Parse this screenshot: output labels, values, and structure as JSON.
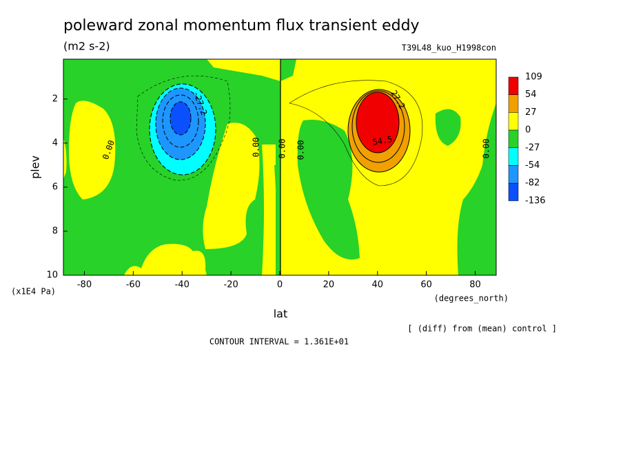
{
  "chart_data": {
    "type": "contour",
    "title": "poleward zonal momentum flux transient eddy",
    "subtitle": "(m2 s-2)",
    "run_label": "T39L48_kuo_H1998con",
    "x_label": "lat",
    "y_label": "plev",
    "x_unit": "(degrees_north)",
    "y_unit": "(x1E4 Pa)",
    "diff_note": "[ (diff) from (mean) control ]",
    "contour_interval": "CONTOUR INTERVAL = 1.361E+01",
    "xlim": [
      -88.6,
      88.6
    ],
    "xticks": [
      -80,
      -60,
      -40,
      -20,
      0,
      20,
      40,
      60,
      80
    ],
    "ylim": [
      10,
      0.19
    ],
    "yticks": [
      2,
      4,
      6,
      8,
      10
    ],
    "colorbar": {
      "levels": [
        109,
        54,
        27,
        0,
        -27,
        -54,
        -82,
        -136
      ],
      "colors": [
        "#f00000",
        "#f0a000",
        "#ffff00",
        "#28d228",
        "#00ffff",
        "#1e96ff",
        "#0a50ff"
      ]
    },
    "contour_labels": [
      "-27.2",
      "0.00",
      "0.00",
      "0.00",
      "0.00",
      "27.2",
      "54.5",
      "0.00"
    ]
  }
}
